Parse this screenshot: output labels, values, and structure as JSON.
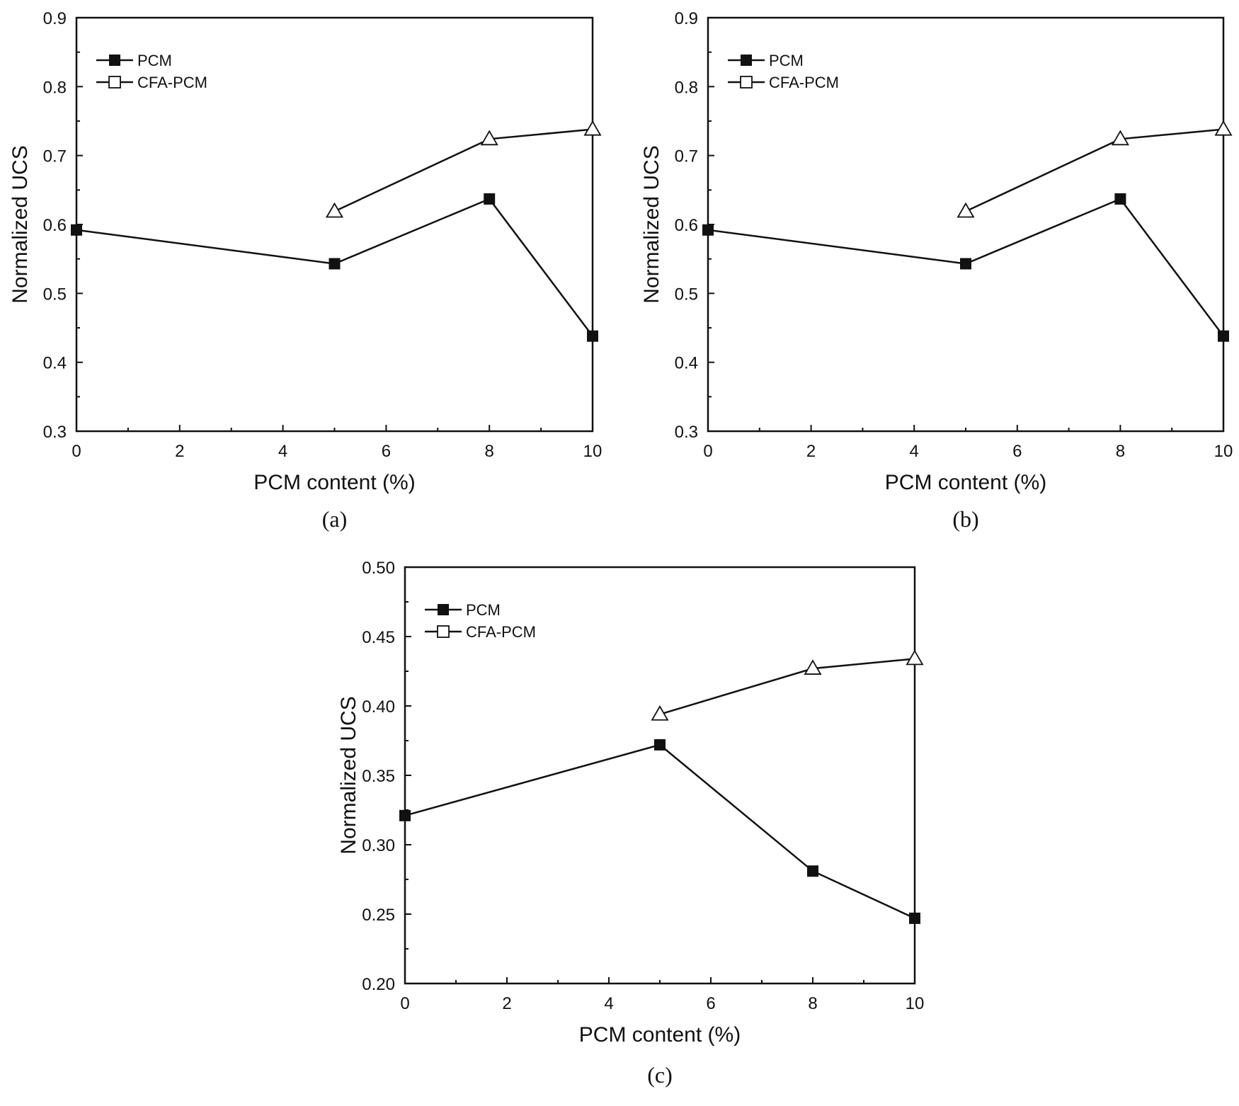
{
  "chart_data": [
    {
      "type": "line",
      "panel_label": "(a)",
      "xlabel": "PCM content (%)",
      "ylabel": "Normalized UCS",
      "xlim": [
        0,
        10
      ],
      "ylim": [
        0.3,
        0.9
      ],
      "xticks": [
        "0",
        "2",
        "4",
        "6",
        "8",
        "10"
      ],
      "yticks": [
        "0.3",
        "0.4",
        "0.5",
        "0.6",
        "0.7",
        "0.8",
        "0.9"
      ],
      "legend": "top-left",
      "grid": false,
      "series": [
        {
          "name": "PCM",
          "marker": "filled-square",
          "x": [
            0,
            5,
            8,
            10
          ],
          "y": [
            0.592,
            0.543,
            0.637,
            0.438
          ]
        },
        {
          "name": "CFA-PCM",
          "marker": "open-triangle",
          "x": [
            5,
            8,
            10
          ],
          "y": [
            0.619,
            0.724,
            0.738
          ]
        }
      ]
    },
    {
      "type": "line",
      "panel_label": "(b)",
      "xlabel": "PCM content (%)",
      "ylabel": "Normalized UCS",
      "xlim": [
        0,
        10
      ],
      "ylim": [
        0.3,
        0.9
      ],
      "xticks": [
        "0",
        "2",
        "4",
        "6",
        "8",
        "10"
      ],
      "yticks": [
        "0.3",
        "0.4",
        "0.5",
        "0.6",
        "0.7",
        "0.8",
        "0.9"
      ],
      "legend": "top-left",
      "grid": false,
      "series": [
        {
          "name": "PCM",
          "marker": "filled-square",
          "x": [
            0,
            5,
            8,
            10
          ],
          "y": [
            0.592,
            0.543,
            0.637,
            0.438
          ]
        },
        {
          "name": "CFA-PCM",
          "marker": "open-triangle",
          "x": [
            5,
            8,
            10
          ],
          "y": [
            0.619,
            0.724,
            0.738
          ]
        }
      ]
    },
    {
      "type": "line",
      "panel_label": "(c)",
      "xlabel": "PCM content (%)",
      "ylabel": "Normalized UCS",
      "xlim": [
        0,
        10
      ],
      "ylim": [
        0.2,
        0.5
      ],
      "xticks": [
        "0",
        "2",
        "4",
        "6",
        "8",
        "10"
      ],
      "yticks": [
        "0.20",
        "0.25",
        "0.30",
        "0.35",
        "0.40",
        "0.45",
        "0.50"
      ],
      "legend": "top-left",
      "grid": false,
      "series": [
        {
          "name": "PCM",
          "marker": "filled-square",
          "x": [
            0,
            5,
            8,
            10
          ],
          "y": [
            0.321,
            0.372,
            0.281,
            0.247
          ]
        },
        {
          "name": "CFA-PCM",
          "marker": "open-triangle",
          "x": [
            5,
            8,
            10
          ],
          "y": [
            0.394,
            0.427,
            0.434
          ]
        }
      ]
    }
  ]
}
